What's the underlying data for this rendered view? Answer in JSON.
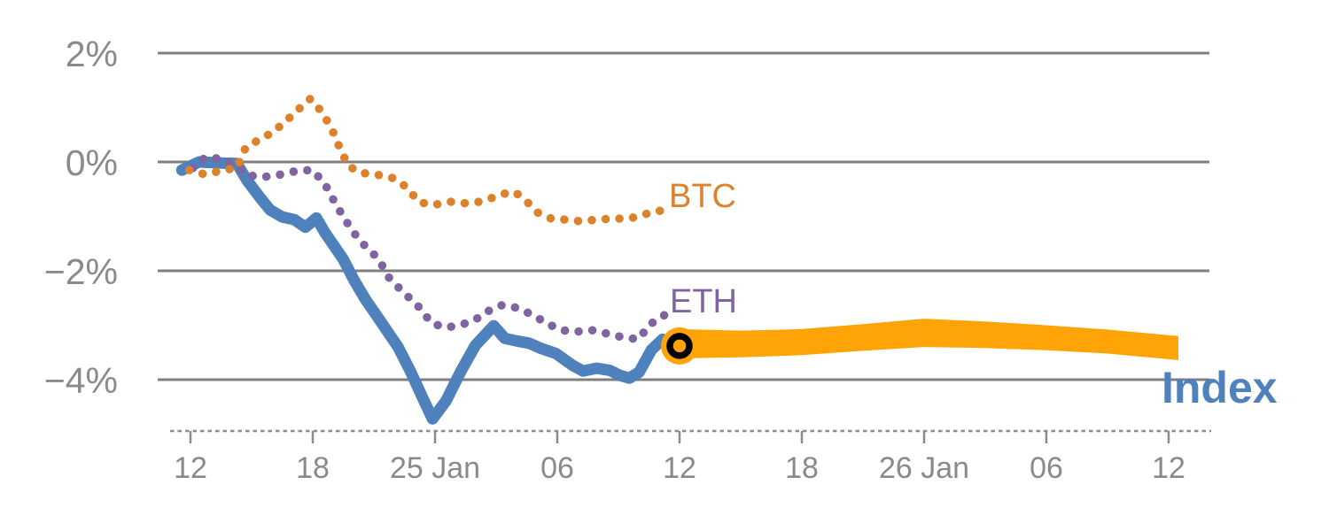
{
  "chart_data": {
    "type": "line",
    "title": "",
    "x_axis": {
      "tick_labels": [
        "12",
        "18",
        "25 Jan",
        "06",
        "12",
        "18",
        "26 Jan",
        "06",
        "12"
      ],
      "note": "series x values are in tick-index units; ticks are evenly spaced dates"
    },
    "y_axis": {
      "unit": "percent",
      "ticks": [
        {
          "value": 2,
          "label": "2%"
        },
        {
          "value": 0,
          "label": "0%"
        },
        {
          "value": -2,
          "label": "−2%"
        },
        {
          "value": -4,
          "label": "−4%"
        }
      ]
    },
    "grid": true,
    "legend_position": "inline-end-of-line",
    "series": [
      {
        "name": "Index",
        "color": "#4F81BD",
        "style": "solid",
        "points": [
          [
            -0.07,
            -0.15
          ],
          [
            0.07,
            0.0
          ],
          [
            0.25,
            -0.02
          ],
          [
            0.38,
            -0.03
          ],
          [
            0.46,
            -0.33
          ],
          [
            0.56,
            -0.63
          ],
          [
            0.65,
            -0.88
          ],
          [
            0.75,
            -1.01
          ],
          [
            0.85,
            -1.06
          ],
          [
            0.94,
            -1.2
          ],
          [
            1.03,
            -1.03
          ],
          [
            1.1,
            -1.3
          ],
          [
            1.25,
            -1.79
          ],
          [
            1.34,
            -2.18
          ],
          [
            1.43,
            -2.52
          ],
          [
            1.54,
            -2.88
          ],
          [
            1.7,
            -3.41
          ],
          [
            1.8,
            -3.85
          ],
          [
            1.9,
            -4.34
          ],
          [
            1.98,
            -4.72
          ],
          [
            2.09,
            -4.39
          ],
          [
            2.21,
            -3.85
          ],
          [
            2.33,
            -3.37
          ],
          [
            2.48,
            -3.01
          ],
          [
            2.57,
            -3.24
          ],
          [
            2.67,
            -3.29
          ],
          [
            2.77,
            -3.33
          ],
          [
            2.86,
            -3.42
          ],
          [
            2.99,
            -3.52
          ],
          [
            3.12,
            -3.73
          ],
          [
            3.21,
            -3.84
          ],
          [
            3.32,
            -3.79
          ],
          [
            3.43,
            -3.83
          ],
          [
            3.51,
            -3.92
          ],
          [
            3.59,
            -3.97
          ],
          [
            3.67,
            -3.86
          ],
          [
            3.77,
            -3.45
          ],
          [
            3.86,
            -3.26
          ],
          [
            4.0,
            -3.38
          ]
        ]
      },
      {
        "name": "ETH",
        "color": "#8064A2",
        "style": "dotted",
        "points": [
          [
            0.02,
            -0.11
          ],
          [
            0.13,
            0.1
          ],
          [
            0.25,
            0.05
          ],
          [
            0.38,
            -0.08
          ],
          [
            0.46,
            -0.24
          ],
          [
            0.59,
            -0.28
          ],
          [
            0.74,
            -0.23
          ],
          [
            0.88,
            -0.16
          ],
          [
            1.0,
            -0.15
          ],
          [
            1.1,
            -0.41
          ],
          [
            1.17,
            -0.7
          ],
          [
            1.25,
            -1.01
          ],
          [
            1.32,
            -1.25
          ],
          [
            1.39,
            -1.46
          ],
          [
            1.47,
            -1.63
          ],
          [
            1.54,
            -1.79
          ],
          [
            1.63,
            -2.15
          ],
          [
            1.74,
            -2.39
          ],
          [
            1.87,
            -2.67
          ],
          [
            1.97,
            -2.96
          ],
          [
            2.08,
            -3.04
          ],
          [
            2.19,
            -3.01
          ],
          [
            2.32,
            -2.91
          ],
          [
            2.45,
            -2.72
          ],
          [
            2.55,
            -2.63
          ],
          [
            2.67,
            -2.68
          ],
          [
            2.79,
            -2.8
          ],
          [
            2.91,
            -2.96
          ],
          [
            3.03,
            -3.09
          ],
          [
            3.15,
            -3.12
          ],
          [
            3.28,
            -3.09
          ],
          [
            3.44,
            -3.17
          ],
          [
            3.57,
            -3.24
          ],
          [
            3.67,
            -3.25
          ],
          [
            3.75,
            -2.99
          ],
          [
            3.86,
            -2.85
          ],
          [
            3.91,
            -2.73
          ]
        ]
      },
      {
        "name": "BTC",
        "color": "#DC822C",
        "style": "dotted",
        "points": [
          [
            -0.01,
            -0.15
          ],
          [
            0.12,
            -0.23
          ],
          [
            0.25,
            -0.16
          ],
          [
            0.38,
            -0.11
          ],
          [
            0.45,
            0.26
          ],
          [
            0.56,
            0.41
          ],
          [
            0.67,
            0.54
          ],
          [
            0.78,
            0.75
          ],
          [
            0.88,
            0.96
          ],
          [
            0.98,
            1.16
          ],
          [
            1.04,
            1.02
          ],
          [
            1.11,
            0.78
          ],
          [
            1.17,
            0.53
          ],
          [
            1.22,
            0.26
          ],
          [
            1.29,
            -0.07
          ],
          [
            1.39,
            -0.2
          ],
          [
            1.51,
            -0.23
          ],
          [
            1.64,
            -0.28
          ],
          [
            1.76,
            -0.45
          ],
          [
            1.87,
            -0.74
          ],
          [
            1.99,
            -0.79
          ],
          [
            2.12,
            -0.73
          ],
          [
            2.25,
            -0.76
          ],
          [
            2.37,
            -0.73
          ],
          [
            2.48,
            -0.65
          ],
          [
            2.6,
            -0.56
          ],
          [
            2.65,
            -0.55
          ],
          [
            2.73,
            -0.68
          ],
          [
            2.84,
            -0.93
          ],
          [
            2.95,
            -1.04
          ],
          [
            3.07,
            -1.06
          ],
          [
            3.19,
            -1.09
          ],
          [
            3.32,
            -1.06
          ],
          [
            3.46,
            -1.04
          ],
          [
            3.59,
            -1.04
          ],
          [
            3.72,
            -0.96
          ],
          [
            3.76,
            -0.93
          ],
          [
            3.86,
            -0.89
          ]
        ]
      }
    ],
    "forecast_band": {
      "series": "Index",
      "color": "#FFA407",
      "points_t_top_bottom": [
        [
          3.97,
          -3.07,
          -3.61
        ],
        [
          4.5,
          -3.1,
          -3.59
        ],
        [
          5.0,
          -3.07,
          -3.55
        ],
        [
          5.5,
          -2.98,
          -3.47
        ],
        [
          6.0,
          -2.88,
          -3.4
        ],
        [
          6.5,
          -2.93,
          -3.42
        ],
        [
          7.0,
          -3.0,
          -3.46
        ],
        [
          7.5,
          -3.08,
          -3.52
        ],
        [
          8.08,
          -3.2,
          -3.64
        ]
      ]
    },
    "now_marker": {
      "x": 4.0,
      "y": -3.38,
      "fill_color": "#FFA407",
      "ring_color": "#000000"
    }
  },
  "labels": {
    "index_series": "Index",
    "eth_series": "ETH",
    "btc_series": "BTC"
  },
  "colors": {
    "gridline": "#7F7F7F",
    "axis": "#8C8C8C",
    "tick_text": "#8A8A8A",
    "background": "#FFFFFF"
  }
}
